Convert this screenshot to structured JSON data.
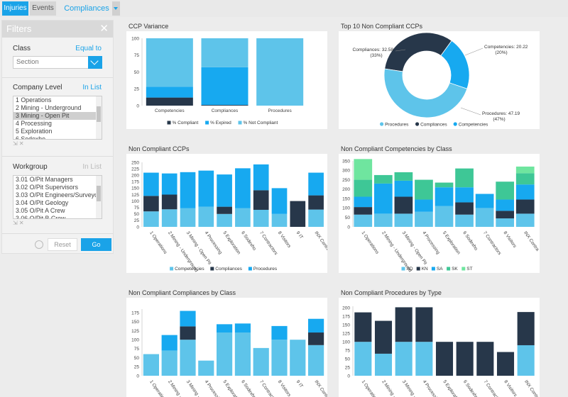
{
  "tabs": [
    {
      "label": "Injuries",
      "active": true
    },
    {
      "label": "Events",
      "active": false
    },
    {
      "label": "Compliances ▾",
      "active": false
    }
  ],
  "filters": {
    "title": "Filters",
    "close_glyph": "✕",
    "class_label": "Class",
    "class_mode": "Equal to",
    "class_value": "Section",
    "company_label": "Company Level",
    "company_mode": "In List",
    "company_items": [
      "1 Operations",
      "2 Mining - Underground",
      "3 Mining - Open Pit",
      "4 Processing",
      "5 Exploration",
      "6 Sodexho"
    ],
    "company_selected": 2,
    "workgroup_label": "Workgroup",
    "workgroup_mode": "In List",
    "workgroup_items": [
      "3.01 O/Pit Managers",
      "3.02 O/Pit Supervisors",
      "3.03 O/Pit Engineers/Surveyors",
      "3.04 O/Pit Geology",
      "3.05 O/Pit A Crew",
      "3.06 O/Pit B Crew"
    ],
    "reset_label": "Reset",
    "go_label": "Go"
  },
  "colors": {
    "dark": "#27374a",
    "blue": "#17a9f0",
    "light": "#5ec4ea",
    "green": "#3ec796",
    "lightgreen": "#6fe59f",
    "accent": "#1aa3e8"
  },
  "chart_data": [
    {
      "id": "ccp-variance",
      "type": "bar",
      "stacked": true,
      "title": "CCP Variance",
      "categories": [
        "Competencies",
        "Compliances",
        "Procedures"
      ],
      "series": [
        {
          "name": "% Compliant",
          "color": "#27374a",
          "values": [
            12,
            1,
            0
          ]
        },
        {
          "name": "% Expired",
          "color": "#17a9f0",
          "values": [
            16,
            56,
            0
          ]
        },
        {
          "name": "% Not Compliant",
          "color": "#5ec4ea",
          "values": [
            72,
            43,
            100
          ]
        }
      ],
      "ylim": [
        0,
        100
      ],
      "yticks": [
        0,
        25,
        50,
        75,
        100
      ]
    },
    {
      "id": "top10",
      "type": "pie",
      "title": "Top 10 Non Compliant CCPs",
      "slices": [
        {
          "name": "Procedures",
          "color": "#5ec4ea",
          "value": 47.19,
          "label": "Procedures: 47.19",
          "pct": "(47%)"
        },
        {
          "name": "Compliances",
          "color": "#27374a",
          "value": 32.58,
          "label": "Compliances: 32.58",
          "pct": "(33%)"
        },
        {
          "name": "Competencies",
          "color": "#17a9f0",
          "value": 20.22,
          "label": "Competencies: 20.22",
          "pct": "(20%)"
        }
      ]
    },
    {
      "id": "ccps",
      "type": "bar",
      "stacked": true,
      "title": "Non Compliant CCPs",
      "categories": [
        "1 Operations",
        "2 Mining - Underground",
        "3 Mining - Open Pit",
        "4 Processing",
        "5 Exploration",
        "6 Sodexho",
        "7 Contractors",
        "8 Visitors",
        "9 IT",
        "INX Contracts"
      ],
      "series": [
        {
          "name": "Competencies",
          "color": "#5ec4ea",
          "values": [
            60,
            68,
            72,
            78,
            50,
            72,
            66,
            50,
            0,
            67
          ]
        },
        {
          "name": "Compliances",
          "color": "#27374a",
          "values": [
            60,
            57,
            0,
            0,
            28,
            0,
            76,
            0,
            100,
            55
          ]
        },
        {
          "name": "Procedures",
          "color": "#17a9f0",
          "values": [
            90,
            82,
            140,
            140,
            125,
            155,
            100,
            100,
            0,
            88
          ]
        }
      ],
      "ylim": [
        0,
        250
      ],
      "yticks": [
        0,
        25,
        50,
        75,
        100,
        125,
        150,
        175,
        200,
        225,
        250
      ]
    },
    {
      "id": "competencies-by-class",
      "type": "bar",
      "stacked": true,
      "title": "Non Compliant Competencies by Class",
      "categories": [
        "1 Operations",
        "2 Mining - Underground",
        "3 Mining - Open Pit",
        "4 Processing",
        "5 Exploration",
        "6 Sodexho",
        "7 Contractors",
        "8 Visitors",
        "INX Contra"
      ],
      "series": [
        {
          "name": "AD",
          "color": "#5ec4ea",
          "values": [
            65,
            70,
            70,
            80,
            110,
            65,
            100,
            45,
            70
          ]
        },
        {
          "name": "KN",
          "color": "#27374a",
          "values": [
            40,
            0,
            90,
            0,
            0,
            65,
            0,
            40,
            75
          ]
        },
        {
          "name": "SA",
          "color": "#17a9f0",
          "values": [
            55,
            160,
            85,
            65,
            100,
            80,
            75,
            60,
            80
          ]
        },
        {
          "name": "SK",
          "color": "#3ec796",
          "values": [
            90,
            45,
            45,
            105,
            25,
            100,
            0,
            95,
            60
          ]
        },
        {
          "name": "ST",
          "color": "#6fe59f",
          "values": [
            110,
            0,
            0,
            0,
            0,
            0,
            0,
            0,
            35
          ]
        }
      ],
      "ylim": [
        0,
        350
      ],
      "yticks": [
        0,
        50,
        100,
        150,
        200,
        250,
        300,
        350
      ]
    },
    {
      "id": "compliances-by-class",
      "type": "bar",
      "stacked": true,
      "title": "Non Compliant Compliances by Class",
      "categories": [
        "1 Operations",
        "2 Mining - Und...",
        "3 Mining - Open Pit",
        "4 Processing",
        "5 Exploration",
        "6 Sodexho",
        "7 Contractors",
        "8 Visitors",
        "9 IT",
        "INX Contracts"
      ],
      "series": [
        {
          "name": "",
          "color": "#5ec4ea",
          "values": [
            60,
            70,
            100,
            42,
            120,
            120,
            77,
            100,
            100,
            85
          ]
        },
        {
          "name": "",
          "color": "#27374a",
          "values": [
            0,
            0,
            37,
            0,
            0,
            0,
            0,
            0,
            0,
            35
          ]
        },
        {
          "name": "",
          "color": "#17a9f0",
          "values": [
            0,
            43,
            43,
            0,
            23,
            25,
            0,
            38,
            0,
            38
          ]
        }
      ],
      "ylim": [
        0,
        185
      ],
      "yticks": [
        0,
        25,
        50,
        75,
        100,
        125,
        150,
        175
      ]
    },
    {
      "id": "procedures-by-type",
      "type": "bar",
      "stacked": true,
      "title": "Non Compliant Procedures by Type",
      "categories": [
        "1 Operations",
        "2 Mining - Und...",
        "3 Mining - Open Pit",
        "4 Processing",
        "5 Exploration",
        "6 Sodexho",
        "7 Contractors",
        "8 Visitors",
        "INX Contracts"
      ],
      "series": [
        {
          "name": "",
          "color": "#5ec4ea",
          "values": [
            100,
            65,
            100,
            100,
            0,
            0,
            0,
            0,
            90
          ]
        },
        {
          "name": "",
          "color": "#27374a",
          "values": [
            87,
            97,
            102,
            102,
            100,
            100,
            100,
            70,
            98
          ]
        }
      ],
      "ylim": [
        0,
        205
      ],
      "yticks": [
        0,
        25,
        50,
        75,
        100,
        125,
        150,
        175,
        200
      ]
    }
  ]
}
